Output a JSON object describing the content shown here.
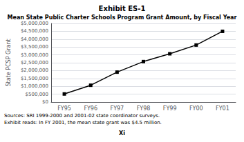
{
  "chart_data": {
    "type": "line",
    "title": "Exhibit ES-1",
    "subtitle": "Mean State Public Charter Schools Program Grant Amount, by Fiscal Year",
    "ylabel": "State PCSP Grant",
    "categories": [
      "FY95",
      "FY96",
      "FY97",
      "FY98",
      "FY99",
      "FY00",
      "FY01"
    ],
    "values": [
      512900,
      1067350,
      1902300,
      2572862,
      3070000,
      3624947,
      4497898
    ],
    "color": "#000000",
    "marker": "square",
    "ylim": [
      0,
      5000000
    ],
    "yticks": [
      {
        "value": 0,
        "label": "$0"
      },
      {
        "value": 500000,
        "label": "$500,000"
      },
      {
        "value": 1000000,
        "label": "$1,000,000"
      },
      {
        "value": 1500000,
        "label": "$1,500,000"
      },
      {
        "value": 2000000,
        "label": "$2,000,000"
      },
      {
        "value": 2500000,
        "label": "$2,500,000"
      },
      {
        "value": 3000000,
        "label": "$3,000,000"
      },
      {
        "value": 3500000,
        "label": "$3,500,000"
      },
      {
        "value": 4000000,
        "label": "$4,000,000"
      },
      {
        "value": 4500000,
        "label": "$4,500,000"
      },
      {
        "value": 5000000,
        "label": "$5,000,000"
      }
    ],
    "grid": true,
    "annotations": [
      "Sources: SRI 1999-2000 and 2001-02 state coordinator surveys.",
      "Exhibit reads: In FY 2001, the mean state grant was $4.5 million.",
      "Xi"
    ]
  }
}
